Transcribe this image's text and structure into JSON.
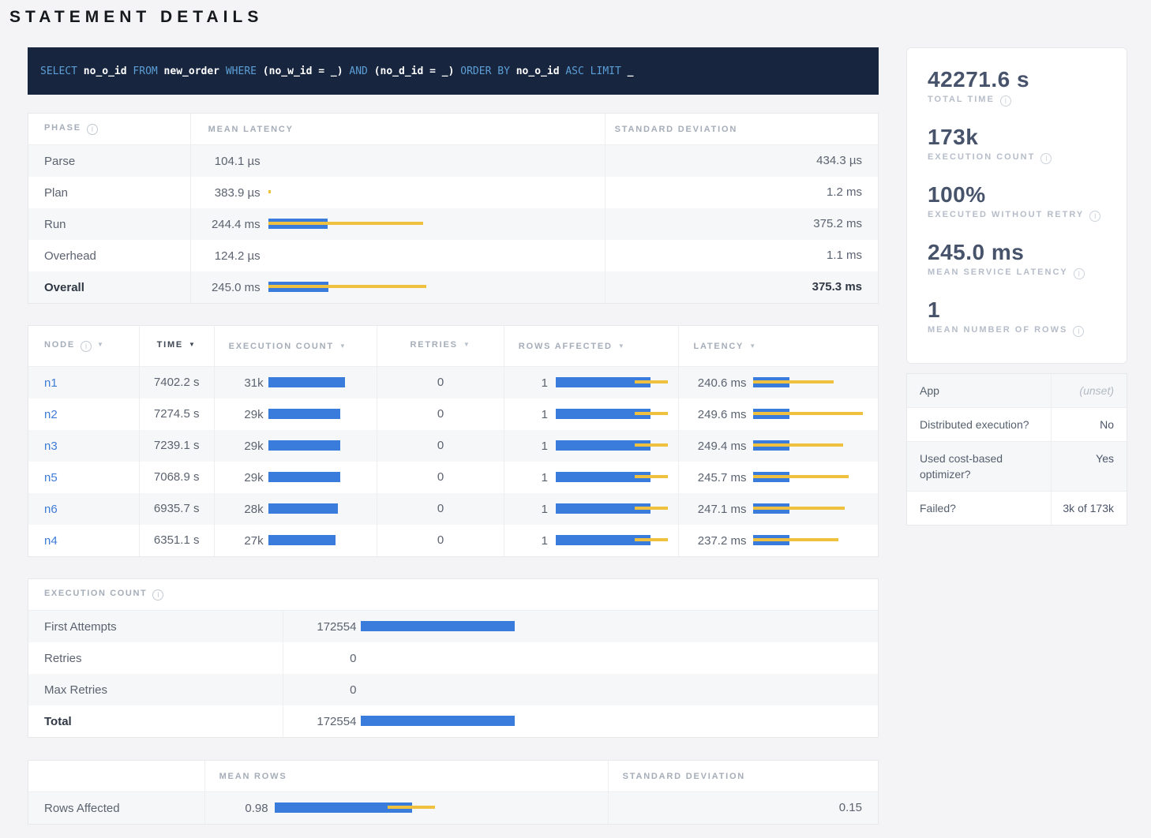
{
  "page": {
    "title": "STATEMENT DETAILS"
  },
  "sql": {
    "tokens": [
      {
        "t": "SELECT",
        "c": "kw"
      },
      {
        "t": "no_o_id",
        "c": "id"
      },
      {
        "t": "FROM",
        "c": "kw"
      },
      {
        "t": "new_order",
        "c": "id"
      },
      {
        "t": "WHERE",
        "c": "kw"
      },
      {
        "t": "(no_w_id = _)",
        "c": "id"
      },
      {
        "t": "AND",
        "c": "kw"
      },
      {
        "t": "(no_d_id = _)",
        "c": "id"
      },
      {
        "t": "ORDER BY",
        "c": "kw"
      },
      {
        "t": "no_o_id",
        "c": "id"
      },
      {
        "t": "ASC LIMIT",
        "c": "kw"
      },
      {
        "t": "_",
        "c": "id"
      }
    ]
  },
  "phase_table": {
    "headers": {
      "phase": "Phase",
      "mean": "Mean Latency",
      "std": "Standard Deviation"
    },
    "rows": [
      {
        "label": "Parse",
        "mean": "104.1 µs",
        "std": "434.3 µs",
        "bar": null
      },
      {
        "label": "Plan",
        "mean": "383.9 µs",
        "std": "1.2 ms",
        "bar": {
          "blue": 0,
          "yl": 0,
          "yw": 3
        }
      },
      {
        "label": "Run",
        "mean": "244.4 ms",
        "std": "375.2 ms",
        "bar": {
          "blue": 75,
          "yl": 0,
          "yw": 196
        }
      },
      {
        "label": "Overhead",
        "mean": "124.2 µs",
        "std": "1.1 ms",
        "bar": null
      },
      {
        "label": "Overall",
        "mean": "245.0 ms",
        "std": "375.3 ms",
        "bar": {
          "blue": 76,
          "yl": 0,
          "yw": 200
        },
        "bold": true
      }
    ]
  },
  "node_table": {
    "headers": [
      {
        "label": "Node",
        "info": true,
        "sort": true,
        "active": false
      },
      {
        "label": "Time",
        "info": false,
        "sort": true,
        "active": true
      },
      {
        "label": "Execution Count",
        "info": false,
        "sort": true,
        "active": false
      },
      {
        "label": "Retries",
        "info": false,
        "sort": true,
        "active": false
      },
      {
        "label": "Rows Affected",
        "info": false,
        "sort": true,
        "active": false
      },
      {
        "label": "Latency",
        "info": false,
        "sort": true,
        "active": false
      }
    ],
    "rows": [
      {
        "node": "n1",
        "time": "7402.2 s",
        "exec": "31k",
        "exec_bar": {
          "blue": 97,
          "yl": 0,
          "yw": 0
        },
        "retries": "0",
        "rows": "1",
        "rows_bar": {
          "blue": 120,
          "yl": 100,
          "yw": 42
        },
        "latency": "240.6 ms",
        "lat_bar": {
          "blue": 46,
          "yl": 0,
          "yw": 102
        }
      },
      {
        "node": "n2",
        "time": "7274.5 s",
        "exec": "29k",
        "exec_bar": {
          "blue": 91,
          "yl": 0,
          "yw": 0
        },
        "retries": "0",
        "rows": "1",
        "rows_bar": {
          "blue": 120,
          "yl": 100,
          "yw": 42
        },
        "latency": "249.6 ms",
        "lat_bar": {
          "blue": 46,
          "yl": 0,
          "yw": 139
        }
      },
      {
        "node": "n3",
        "time": "7239.1 s",
        "exec": "29k",
        "exec_bar": {
          "blue": 91,
          "yl": 0,
          "yw": 0
        },
        "retries": "0",
        "rows": "1",
        "rows_bar": {
          "blue": 120,
          "yl": 100,
          "yw": 42
        },
        "latency": "249.4 ms",
        "lat_bar": {
          "blue": 46,
          "yl": 0,
          "yw": 114
        }
      },
      {
        "node": "n5",
        "time": "7068.9 s",
        "exec": "29k",
        "exec_bar": {
          "blue": 91,
          "yl": 0,
          "yw": 0
        },
        "retries": "0",
        "rows": "1",
        "rows_bar": {
          "blue": 120,
          "yl": 100,
          "yw": 42
        },
        "latency": "245.7 ms",
        "lat_bar": {
          "blue": 46,
          "yl": 0,
          "yw": 121
        }
      },
      {
        "node": "n6",
        "time": "6935.7 s",
        "exec": "28k",
        "exec_bar": {
          "blue": 88,
          "yl": 0,
          "yw": 0
        },
        "retries": "0",
        "rows": "1",
        "rows_bar": {
          "blue": 120,
          "yl": 100,
          "yw": 42
        },
        "latency": "247.1 ms",
        "lat_bar": {
          "blue": 46,
          "yl": 0,
          "yw": 116
        }
      },
      {
        "node": "n4",
        "time": "6351.1 s",
        "exec": "27k",
        "exec_bar": {
          "blue": 85,
          "yl": 0,
          "yw": 0
        },
        "retries": "0",
        "rows": "1",
        "rows_bar": {
          "blue": 120,
          "yl": 100,
          "yw": 42
        },
        "latency": "237.2 ms",
        "lat_bar": {
          "blue": 46,
          "yl": 0,
          "yw": 108
        }
      }
    ]
  },
  "exec_table": {
    "title": "Execution Count",
    "rows": [
      {
        "label": "First Attempts",
        "value": "172554",
        "bar": {
          "blue": 195,
          "yl": 0,
          "yw": 0
        }
      },
      {
        "label": "Retries",
        "value": "0",
        "bar": null
      },
      {
        "label": "Max Retries",
        "value": "0",
        "bar": null
      },
      {
        "label": "Total",
        "value": "172554",
        "bar": {
          "blue": 195,
          "yl": 0,
          "yw": 0
        },
        "bold": true
      }
    ]
  },
  "rows_table": {
    "headers": {
      "blank": "",
      "mean": "Mean Rows",
      "std": "Standard Deviation"
    },
    "rows": [
      {
        "label": "Rows Affected",
        "mean": "0.98",
        "std": "0.15",
        "bar": {
          "blue": 174,
          "yl": 143,
          "yw": 60
        }
      }
    ]
  },
  "stats": [
    {
      "value": "42271.6 s",
      "label": "Total Time"
    },
    {
      "value": "173k",
      "label": "Execution Count"
    },
    {
      "value": "100%",
      "label": "Executed Without Retry"
    },
    {
      "value": "245.0 ms",
      "label": "Mean Service Latency"
    },
    {
      "value": "1",
      "label": "Mean Number of Rows"
    }
  ],
  "app_table": {
    "rows": [
      {
        "label": "App",
        "value": "(unset)",
        "unset": true
      },
      {
        "label": "Distributed execution?",
        "value": "No"
      },
      {
        "label": "Used cost-based optimizer?",
        "value": "Yes"
      },
      {
        "label": "Failed?",
        "value": "3k of 173k"
      }
    ]
  },
  "colors": {
    "bar_blue": "#3a7cdc",
    "bar_yellow": "#f0c13e",
    "sql_bg": "#17253f",
    "sql_keyword": "#5c9fd6",
    "link": "#3e7bd8"
  }
}
